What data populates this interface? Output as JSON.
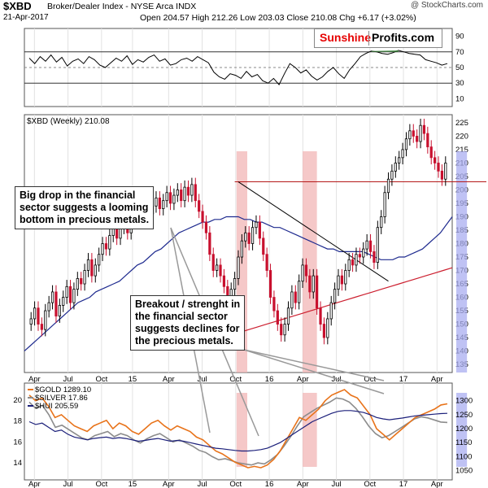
{
  "header": {
    "symbol": "$XBD",
    "description": "Broker/Dealer Index - NYSE Arca INDX",
    "date": "21-Apr-2017",
    "ohlc": "Open 204.57  High 212.26  Low 203.03  Close 210.08  Chg +6.17 (+3.02%)",
    "credit": "@ StockCharts.com"
  },
  "logo": {
    "part1": "Sunshine",
    "part2": "Profits.com"
  },
  "colors": {
    "up": "#000000",
    "down": "#c8102e",
    "ma_fast": "#1f2b8f",
    "ma_slow": "#cc1f2f",
    "resistance": "#b51a1a",
    "trendline": "#000000",
    "highlight_red": "#f2b6b6",
    "highlight_blue": "#a9aef0",
    "gold": "#e8731a",
    "silver": "#8c8c8c",
    "hui": "#1b1f7a"
  },
  "annotations": {
    "note1": [
      "Big drop in the financial",
      "sector suggests a looming",
      "bottom in precious metals."
    ],
    "note2": [
      "Breakout / strenght in",
      "the financial sector",
      "suggests declines for",
      "the precious metals."
    ]
  },
  "chart_data": [
    {
      "type": "line",
      "panel": "indicator",
      "y_ticks": [
        90,
        70,
        50,
        30,
        10
      ],
      "ylim": [
        0,
        100
      ],
      "reference_lines": [
        70,
        50,
        30
      ],
      "x_ticks": [
        "Apr",
        "Jul",
        "Oct",
        "15",
        "Apr",
        "Jul",
        "Oct",
        "16",
        "Apr",
        "Jul",
        "Oct",
        "17",
        "Apr"
      ],
      "series": [
        {
          "x": [
            0,
            2,
            4,
            6,
            8,
            10,
            12,
            14,
            16,
            18,
            20,
            22,
            24,
            26,
            28,
            30,
            32,
            34,
            36,
            38,
            40,
            42,
            44,
            46,
            48,
            50,
            52,
            54,
            56,
            58,
            60,
            62,
            64,
            66,
            68,
            70,
            72,
            74,
            76,
            78,
            80,
            82,
            84,
            86,
            88,
            90,
            92,
            94,
            96,
            98,
            100,
            102,
            104,
            106,
            108,
            110,
            112,
            114,
            116,
            118,
            120,
            122,
            124,
            126,
            128,
            130,
            132,
            134,
            136,
            138,
            140,
            142,
            144,
            146,
            148,
            150,
            152,
            154
          ],
          "values": [
            62,
            55,
            64,
            58,
            66,
            57,
            63,
            52,
            58,
            61,
            55,
            64,
            60,
            53,
            50,
            56,
            62,
            58,
            65,
            54,
            60,
            57,
            63,
            66,
            58,
            61,
            53,
            55,
            60,
            62,
            58,
            64,
            60,
            56,
            44,
            38,
            35,
            42,
            40,
            36,
            45,
            38,
            41,
            33,
            30,
            36,
            28,
            42,
            55,
            50,
            43,
            47,
            39,
            34,
            38,
            45,
            50,
            42,
            36,
            47,
            55,
            64,
            68,
            71,
            70,
            68,
            67,
            69,
            72,
            70,
            68,
            67,
            66,
            60,
            58,
            56,
            53,
            55
          ]
        }
      ]
    },
    {
      "type": "candlestick",
      "panel": "price",
      "title": "$XBD (Weekly) 210.08",
      "y_ticks": [
        225,
        220,
        215,
        210,
        205,
        200,
        195,
        190,
        185,
        180,
        175,
        170,
        165,
        160,
        155,
        150,
        145,
        140,
        135
      ],
      "ylim": [
        132,
        228
      ],
      "x_ticks": [
        "Apr",
        "Jul",
        "Oct",
        "15",
        "Apr",
        "Jul",
        "Oct",
        "16",
        "Apr",
        "Jul",
        "Oct",
        "17",
        "Apr"
      ],
      "resistance": 203,
      "trendline": [
        [
          58,
          203
        ],
        [
          100,
          166
        ]
      ],
      "highlights": [
        {
          "x": [
            57.5,
            60.5
          ],
          "color": "red"
        },
        {
          "x": [
            76,
            80
          ],
          "color": "red"
        },
        {
          "x": [
            119,
            122
          ],
          "color": "blue"
        }
      ],
      "close": [
        152,
        156,
        150,
        148,
        155,
        158,
        162,
        153,
        157,
        160,
        164,
        158,
        163,
        167,
        165,
        170,
        174,
        168,
        172,
        176,
        180,
        178,
        183,
        187,
        182,
        186,
        190,
        184,
        189,
        193,
        188,
        192,
        195,
        191,
        194,
        197,
        193,
        196,
        199,
        195,
        198,
        200,
        196,
        201,
        198,
        202,
        196,
        192,
        188,
        184,
        176,
        170,
        172,
        168,
        164,
        160,
        163,
        167,
        175,
        181,
        184,
        180,
        186,
        188,
        182,
        176,
        170,
        160,
        155,
        150,
        146,
        150,
        156,
        162,
        158,
        166,
        172,
        168,
        162,
        168,
        156,
        150,
        145,
        152,
        158,
        163,
        168,
        165,
        170,
        174,
        172,
        176,
        175,
        178,
        181,
        177,
        173,
        186,
        190,
        199,
        204,
        207,
        210,
        212,
        215,
        219,
        222,
        220,
        218,
        224,
        221,
        216,
        212,
        210,
        207,
        204,
        210
      ],
      "ma_fast": [
        140,
        142,
        144,
        146,
        148,
        150,
        152,
        154,
        156,
        158,
        159,
        160,
        162,
        163,
        164,
        165,
        166,
        168,
        170,
        172,
        173,
        175,
        177,
        178,
        180,
        182,
        184,
        185,
        186,
        187,
        188,
        188,
        189,
        189,
        190,
        190,
        190,
        189,
        189,
        188,
        188,
        187,
        186,
        186,
        185,
        184,
        183,
        182,
        181,
        180,
        179,
        178,
        178,
        177,
        177,
        177,
        177,
        177,
        176,
        175,
        174,
        174,
        174,
        175,
        175,
        176,
        177,
        178,
        180,
        182,
        184,
        187,
        190
      ],
      "ma_slow": [
        146,
        147,
        148,
        149,
        150,
        151,
        152,
        153,
        154,
        155,
        156,
        157,
        158,
        159,
        160,
        161,
        162,
        163,
        164,
        165,
        166,
        167,
        168,
        169,
        170,
        171
      ]
    },
    {
      "type": "line",
      "panel": "metals",
      "y_ticks_left": [
        20,
        18,
        16,
        14
      ],
      "y_ticks_right": [
        1300,
        1250,
        1200,
        1150,
        1100,
        1050
      ],
      "x_ticks": [
        "Apr",
        "Jul",
        "Oct",
        "15",
        "Apr",
        "Jul",
        "Oct",
        "16",
        "Apr",
        "Jul",
        "Oct",
        "17",
        "Apr"
      ],
      "series": [
        {
          "name": "$GOLD 1289.10",
          "key": "gold"
        },
        {
          "name": "$SILVER 17.86",
          "key": "silver"
        },
        {
          "name": "$HUI 205.59",
          "key": "hui"
        }
      ],
      "gold": [
        1320,
        1300,
        1310,
        1280,
        1240,
        1250,
        1230,
        1210,
        1200,
        1190,
        1210,
        1220,
        1230,
        1200,
        1220,
        1210,
        1190,
        1180,
        1200,
        1220,
        1230,
        1210,
        1195,
        1210,
        1200,
        1190,
        1170,
        1160,
        1140,
        1120,
        1110,
        1095,
        1080,
        1070,
        1060,
        1065,
        1060,
        1070,
        1090,
        1120,
        1160,
        1200,
        1240,
        1230,
        1250,
        1270,
        1300,
        1320,
        1330,
        1340,
        1320,
        1310,
        1280,
        1250,
        1200,
        1180,
        1160,
        1180,
        1200,
        1220,
        1240,
        1250,
        1260,
        1270,
        1285,
        1289
      ],
      "silver": [
        19.8,
        19.2,
        19.5,
        18.6,
        17.4,
        17.6,
        17.2,
        16.8,
        16.4,
        16.2,
        16.6,
        16.8,
        17,
        16.5,
        16.8,
        16.6,
        16.2,
        15.9,
        16.3,
        16.6,
        16.8,
        16.4,
        16,
        16.2,
        15.9,
        15.6,
        15.2,
        15,
        14.6,
        14.3,
        14.4,
        14.2,
        14,
        13.9,
        13.8,
        14,
        13.9,
        14.3,
        14.8,
        15.6,
        16.5,
        17.5,
        18.4,
        18.8,
        19.2,
        19.5,
        19.8,
        20.2,
        20.1,
        19.8,
        19.2,
        18.4,
        17.5,
        16.8,
        16.4,
        16.6,
        17,
        17.4,
        17.8,
        18.2,
        18.4,
        18.3,
        18.1,
        17.9,
        17.86
      ],
      "hui": [
        1225,
        1215,
        1220,
        1205,
        1190,
        1195,
        1180,
        1170,
        1165,
        1160,
        1165,
        1168,
        1170,
        1165,
        1168,
        1165,
        1160,
        1155,
        1158,
        1162,
        1165,
        1160,
        1155,
        1158,
        1155,
        1150,
        1145,
        1140,
        1135,
        1130,
        1128,
        1125,
        1122,
        1120,
        1120,
        1122,
        1125,
        1130,
        1140,
        1150,
        1165,
        1180,
        1195,
        1210,
        1225,
        1235,
        1245,
        1255,
        1262,
        1265,
        1265,
        1262,
        1258,
        1250,
        1240,
        1235,
        1232,
        1235,
        1238,
        1242,
        1246,
        1248,
        1250,
        1252,
        1254,
        1255
      ]
    }
  ]
}
